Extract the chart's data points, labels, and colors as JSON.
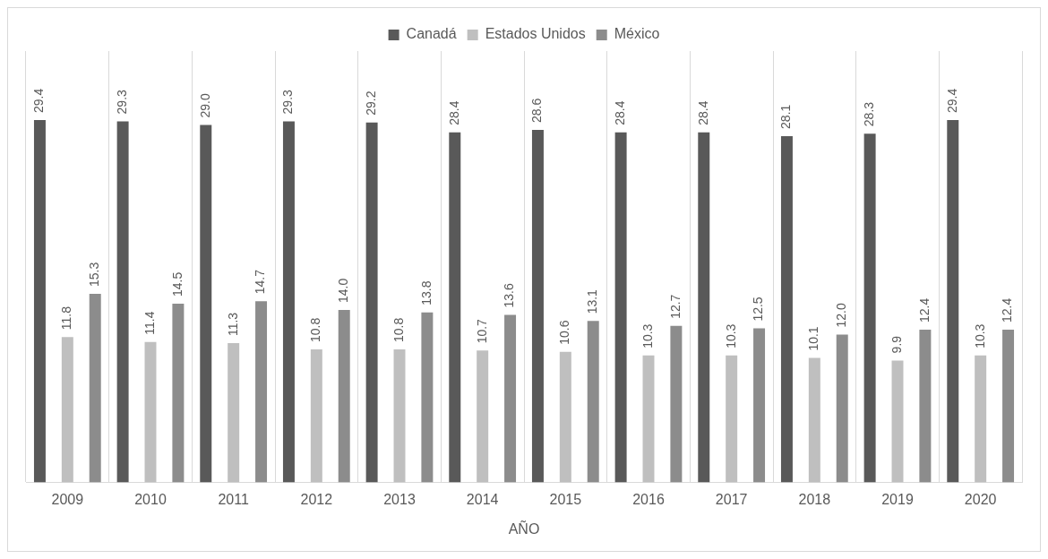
{
  "chart_data": {
    "type": "bar",
    "xlabel": "AÑO",
    "categories": [
      "2009",
      "2010",
      "2011",
      "2012",
      "2013",
      "2014",
      "2015",
      "2016",
      "2017",
      "2018",
      "2019",
      "2020"
    ],
    "series": [
      {
        "name": "Canadá",
        "color": "#595959",
        "values": [
          29.4,
          29.3,
          29.0,
          29.3,
          29.2,
          28.4,
          28.6,
          28.4,
          28.4,
          28.1,
          28.3,
          29.4
        ],
        "value_labels": [
          "29.4",
          "29.3",
          "29.0",
          "29.3",
          "29.2",
          "28.4",
          "28.6",
          "28.4",
          "28.4",
          "28.1",
          "28.3",
          "29.4"
        ]
      },
      {
        "name": "Estados Unidos",
        "color": "#bfbfbf",
        "values": [
          11.8,
          11.4,
          11.3,
          10.8,
          10.8,
          10.7,
          10.6,
          10.3,
          10.3,
          10.1,
          9.9,
          10.3
        ],
        "value_labels": [
          "11.8",
          "11.4",
          "11.3",
          "10.8",
          "10.8",
          "10.7",
          "10.6",
          "10.3",
          "10.3",
          "10.1",
          "9.9",
          "10.3"
        ]
      },
      {
        "name": "México",
        "color": "#8c8c8c",
        "values": [
          15.3,
          14.5,
          14.7,
          14.0,
          13.8,
          13.6,
          13.1,
          12.7,
          12.5,
          12.0,
          12.4,
          12.4
        ],
        "value_labels": [
          "15.3",
          "14.5",
          "14.7",
          "14.0",
          "13.8",
          "13.6",
          "13.1",
          "12.7",
          "12.5",
          "12.0",
          "12.4",
          "12.4"
        ]
      }
    ],
    "grid": "x",
    "legend": "top"
  }
}
